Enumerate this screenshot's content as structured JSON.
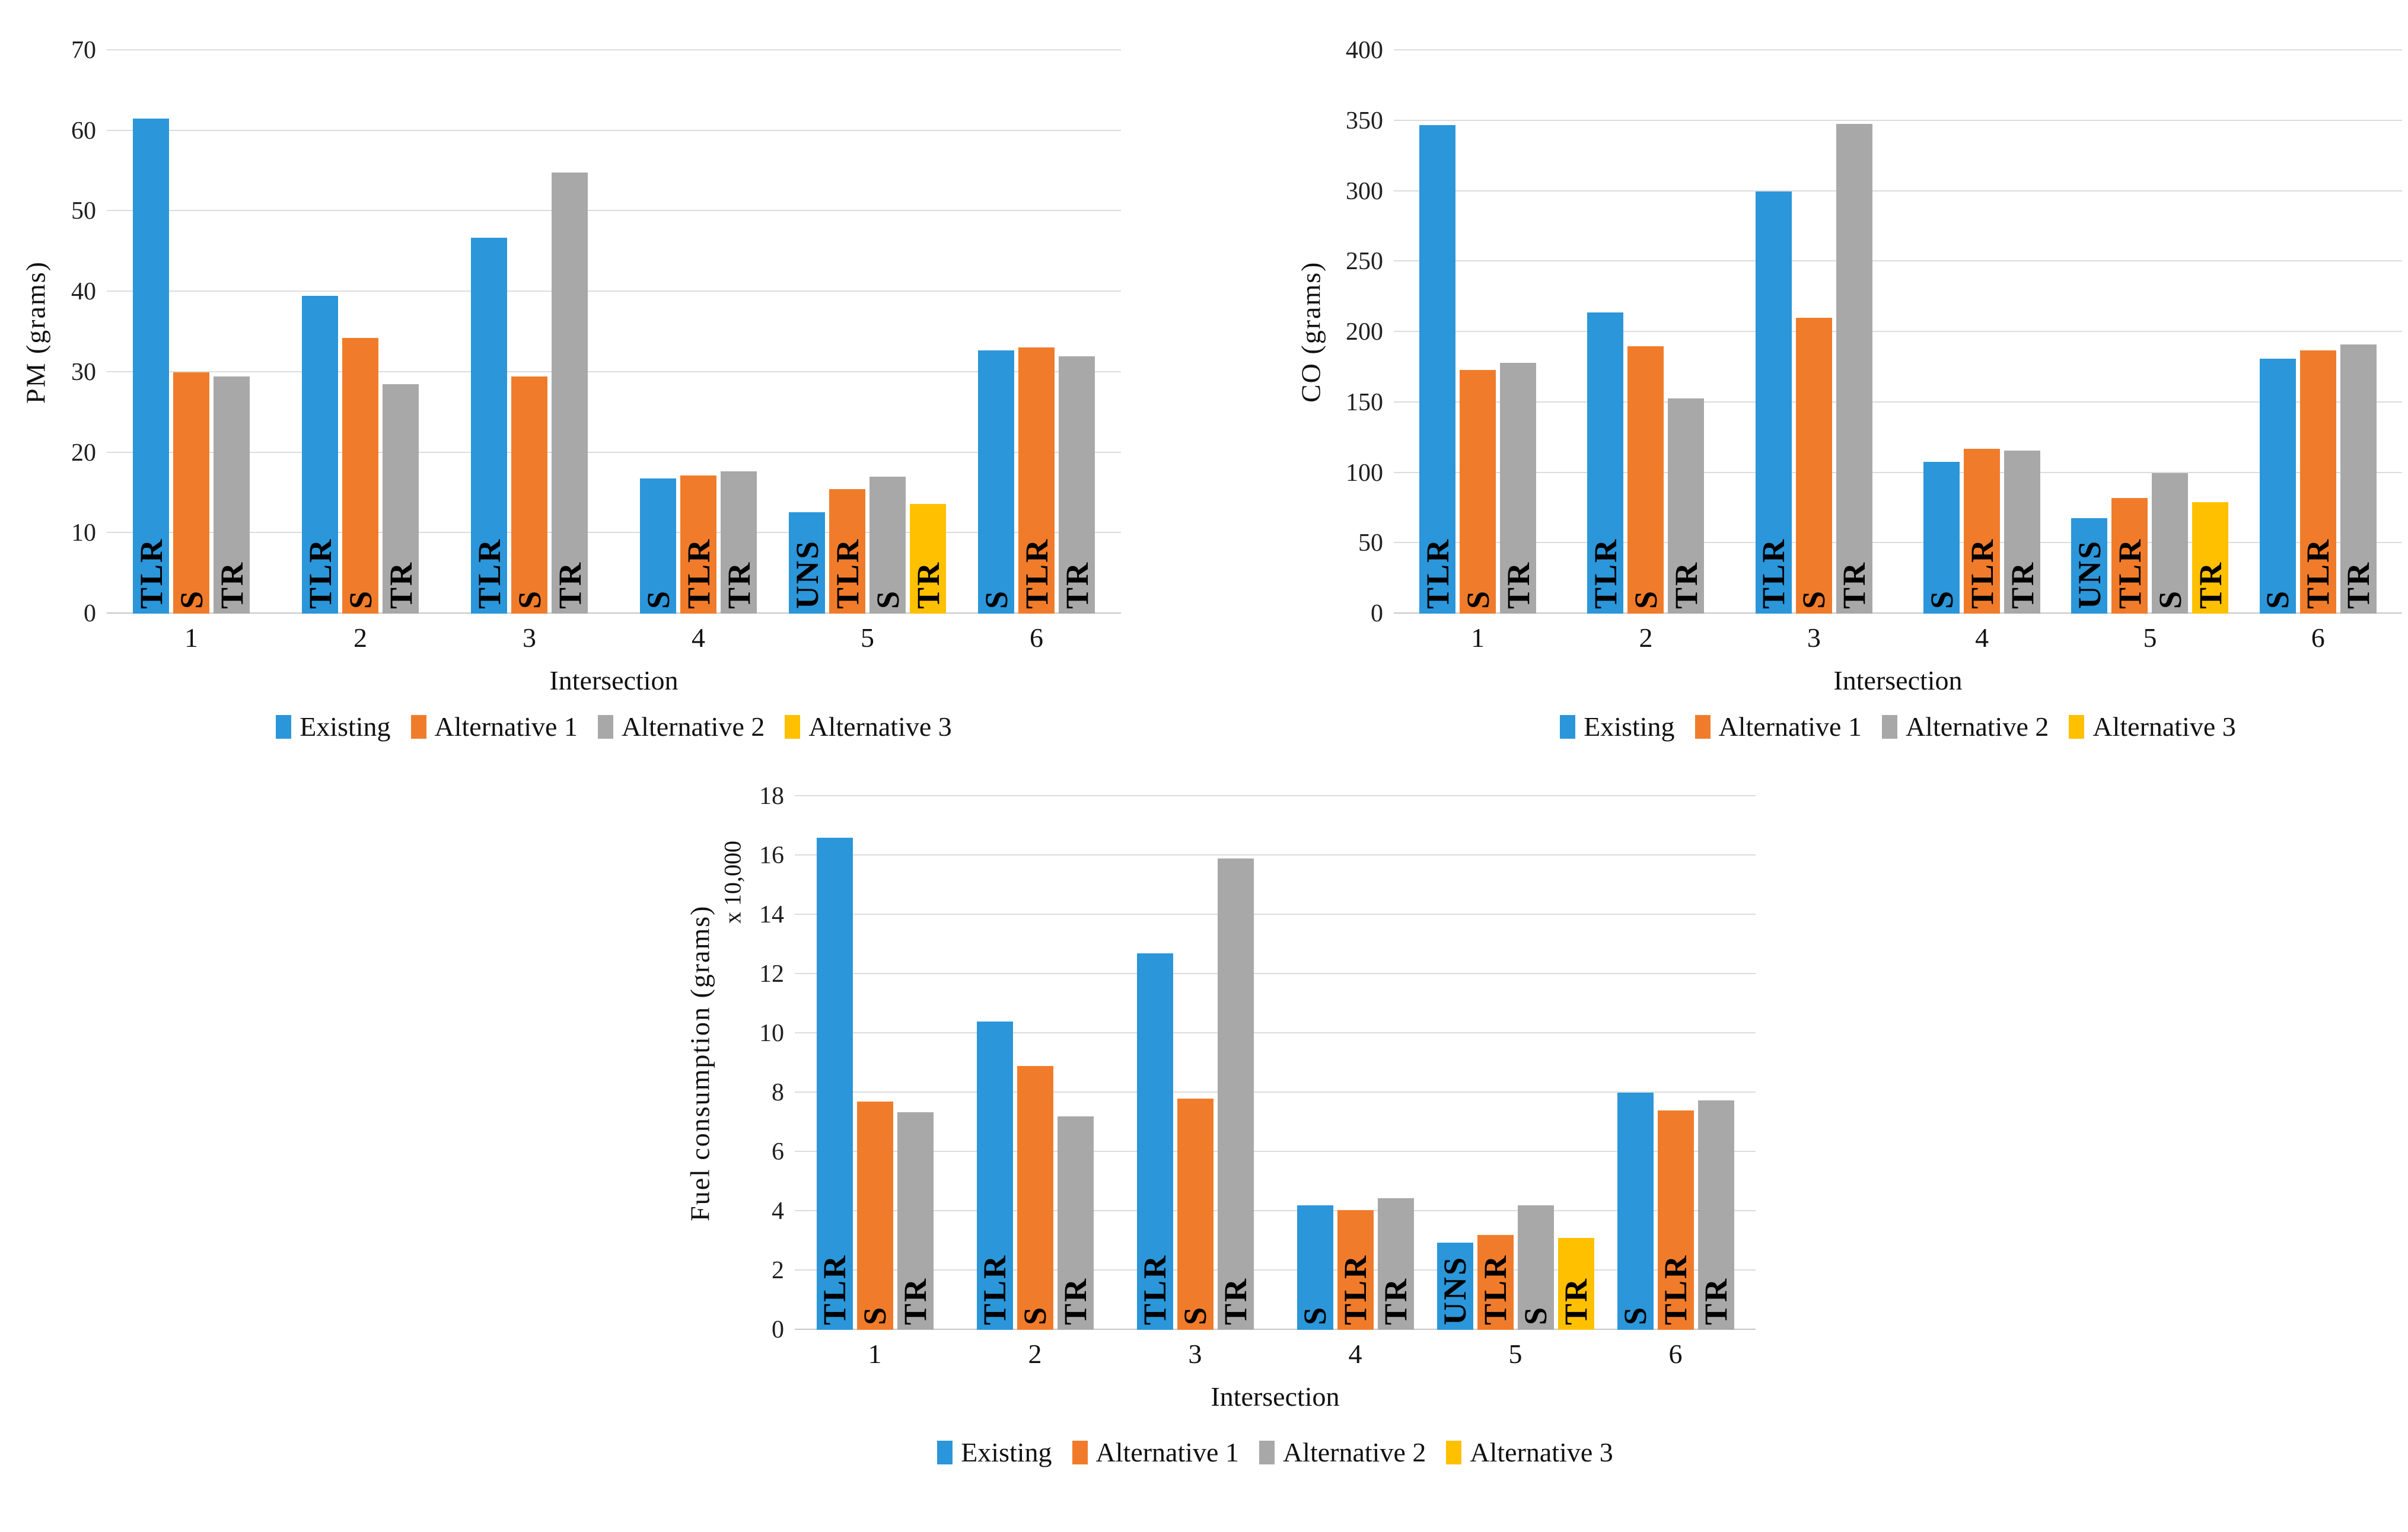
{
  "chart_data": [
    {
      "id": "pm-emissions",
      "type": "bar",
      "title": "",
      "xlabel": "Intersection",
      "ylabel": "PM (grams)",
      "ylim": [
        0,
        70
      ],
      "yticks": [
        0,
        10,
        20,
        30,
        40,
        50,
        60,
        70
      ],
      "grid": "horizontal",
      "legend_position": "bottom",
      "categories": [
        "1",
        "2",
        "3",
        "4",
        "5",
        "6"
      ],
      "series_legend": [
        {
          "name": "Existing",
          "color": "#2B96D9"
        },
        {
          "name": "Alternative 1",
          "color": "#F07C2B"
        },
        {
          "name": "Alternative 2",
          "color": "#A8A8A8"
        },
        {
          "name": "Alternative 3",
          "color": "#FFC000"
        }
      ],
      "groups": [
        {
          "category": "1",
          "bars": [
            {
              "series": "Existing",
              "label": "TLR",
              "value": 61.5
            },
            {
              "series": "Alternative 1",
              "label": "S",
              "value": 30
            },
            {
              "series": "Alternative 2",
              "label": "TR",
              "value": 29.5
            }
          ]
        },
        {
          "category": "2",
          "bars": [
            {
              "series": "Existing",
              "label": "TLR",
              "value": 39.5
            },
            {
              "series": "Alternative 1",
              "label": "S",
              "value": 34.3
            },
            {
              "series": "Alternative 2",
              "label": "TR",
              "value": 28.5
            }
          ]
        },
        {
          "category": "3",
          "bars": [
            {
              "series": "Existing",
              "label": "TLR",
              "value": 46.7
            },
            {
              "series": "Alternative 1",
              "label": "S",
              "value": 29.5
            },
            {
              "series": "Alternative 2",
              "label": "TR",
              "value": 54.8
            }
          ]
        },
        {
          "category": "4",
          "bars": [
            {
              "series": "Existing",
              "label": "S",
              "value": 16.8
            },
            {
              "series": "Alternative 1",
              "label": "TLR",
              "value": 17.2
            },
            {
              "series": "Alternative 2",
              "label": "TR",
              "value": 17.7
            }
          ]
        },
        {
          "category": "5",
          "bars": [
            {
              "series": "Existing",
              "label": "UNS",
              "value": 12.6
            },
            {
              "series": "Alternative 1",
              "label": "TLR",
              "value": 15.5
            },
            {
              "series": "Alternative 2",
              "label": "S",
              "value": 17
            },
            {
              "series": "Alternative 3",
              "label": "TR",
              "value": 13.6
            }
          ]
        },
        {
          "category": "6",
          "bars": [
            {
              "series": "Existing",
              "label": "S",
              "value": 32.7
            },
            {
              "series": "Alternative 1",
              "label": "TLR",
              "value": 33.1
            },
            {
              "series": "Alternative 2",
              "label": "TR",
              "value": 32
            }
          ]
        }
      ]
    },
    {
      "id": "co-emissions",
      "type": "bar",
      "title": "",
      "xlabel": "Intersection",
      "ylabel": "CO (grams)",
      "ylim": [
        0,
        400
      ],
      "yticks": [
        0,
        50,
        100,
        150,
        200,
        250,
        300,
        350,
        400
      ],
      "grid": "horizontal",
      "legend_position": "bottom",
      "categories": [
        "1",
        "2",
        "3",
        "4",
        "5",
        "6"
      ],
      "series_legend": [
        {
          "name": "Existing",
          "color": "#2B96D9"
        },
        {
          "name": "Alternative 1",
          "color": "#F07C2B"
        },
        {
          "name": "Alternative 2",
          "color": "#A8A8A8"
        },
        {
          "name": "Alternative 3",
          "color": "#FFC000"
        }
      ],
      "groups": [
        {
          "category": "1",
          "bars": [
            {
              "series": "Existing",
              "label": "TLR",
              "value": 347
            },
            {
              "series": "Alternative 1",
              "label": "S",
              "value": 173
            },
            {
              "series": "Alternative 2",
              "label": "TR",
              "value": 178
            }
          ]
        },
        {
          "category": "2",
          "bars": [
            {
              "series": "Existing",
              "label": "TLR",
              "value": 214
            },
            {
              "series": "Alternative 1",
              "label": "S",
              "value": 190
            },
            {
              "series": "Alternative 2",
              "label": "TR",
              "value": 153
            }
          ]
        },
        {
          "category": "3",
          "bars": [
            {
              "series": "Existing",
              "label": "TLR",
              "value": 300
            },
            {
              "series": "Alternative 1",
              "label": "S",
              "value": 210
            },
            {
              "series": "Alternative 2",
              "label": "TR",
              "value": 348
            }
          ]
        },
        {
          "category": "4",
          "bars": [
            {
              "series": "Existing",
              "label": "S",
              "value": 108
            },
            {
              "series": "Alternative 1",
              "label": "TLR",
              "value": 117
            },
            {
              "series": "Alternative 2",
              "label": "TR",
              "value": 116
            }
          ]
        },
        {
          "category": "5",
          "bars": [
            {
              "series": "Existing",
              "label": "UNS",
              "value": 68
            },
            {
              "series": "Alternative 1",
              "label": "TLR",
              "value": 82
            },
            {
              "series": "Alternative 2",
              "label": "S",
              "value": 100
            },
            {
              "series": "Alternative 3",
              "label": "TR",
              "value": 79
            }
          ]
        },
        {
          "category": "6",
          "bars": [
            {
              "series": "Existing",
              "label": "S",
              "value": 181
            },
            {
              "series": "Alternative 1",
              "label": "TLR",
              "value": 187
            },
            {
              "series": "Alternative 2",
              "label": "TR",
              "value": 191
            }
          ]
        }
      ]
    },
    {
      "id": "fuel-consumption",
      "type": "bar",
      "title": "",
      "xlabel": "Intersection",
      "ylabel": "Fuel consumption (grams)",
      "y_axis_note": "x 10,000",
      "ylim": [
        0,
        18
      ],
      "yticks": [
        0,
        2,
        4,
        6,
        8,
        10,
        12,
        14,
        16,
        18
      ],
      "grid": "horizontal",
      "legend_position": "bottom",
      "categories": [
        "1",
        "2",
        "3",
        "4",
        "5",
        "6"
      ],
      "series_legend": [
        {
          "name": "Existing",
          "color": "#2B96D9"
        },
        {
          "name": "Alternative 1",
          "color": "#F07C2B"
        },
        {
          "name": "Alternative 2",
          "color": "#A8A8A8"
        },
        {
          "name": "Alternative 3",
          "color": "#FFC000"
        }
      ],
      "groups": [
        {
          "category": "1",
          "bars": [
            {
              "series": "Existing",
              "label": "TLR",
              "value": 16.6
            },
            {
              "series": "Alternative 1",
              "label": "S",
              "value": 7.7
            },
            {
              "series": "Alternative 2",
              "label": "TR",
              "value": 7.35
            }
          ]
        },
        {
          "category": "2",
          "bars": [
            {
              "series": "Existing",
              "label": "TLR",
              "value": 10.4
            },
            {
              "series": "Alternative 1",
              "label": "S",
              "value": 8.9
            },
            {
              "series": "Alternative 2",
              "label": "TR",
              "value": 7.2
            }
          ]
        },
        {
          "category": "3",
          "bars": [
            {
              "series": "Existing",
              "label": "TLR",
              "value": 12.7
            },
            {
              "series": "Alternative 1",
              "label": "S",
              "value": 7.8
            },
            {
              "series": "Alternative 2",
              "label": "TR",
              "value": 15.9
            }
          ]
        },
        {
          "category": "4",
          "bars": [
            {
              "series": "Existing",
              "label": "S",
              "value": 4.2
            },
            {
              "series": "Alternative 1",
              "label": "TLR",
              "value": 4.05
            },
            {
              "series": "Alternative 2",
              "label": "TR",
              "value": 4.45
            }
          ]
        },
        {
          "category": "5",
          "bars": [
            {
              "series": "Existing",
              "label": "UNS",
              "value": 2.95
            },
            {
              "series": "Alternative 1",
              "label": "TLR",
              "value": 3.2
            },
            {
              "series": "Alternative 2",
              "label": "S",
              "value": 4.2
            },
            {
              "series": "Alternative 3",
              "label": "TR",
              "value": 3.1
            }
          ]
        },
        {
          "category": "6",
          "bars": [
            {
              "series": "Existing",
              "label": "S",
              "value": 8
            },
            {
              "series": "Alternative 1",
              "label": "TLR",
              "value": 7.4
            },
            {
              "series": "Alternative 2",
              "label": "TR",
              "value": 7.75
            }
          ]
        }
      ]
    }
  ]
}
